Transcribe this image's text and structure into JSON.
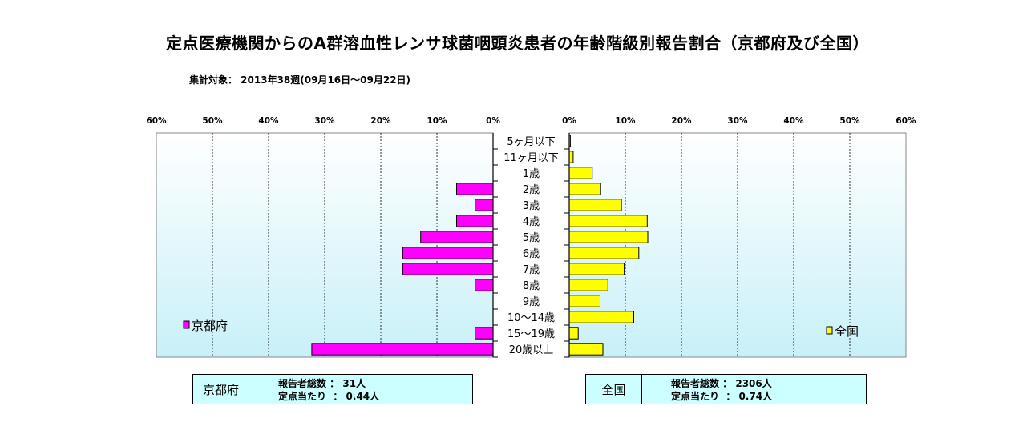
{
  "title": "定点医療機関からのA群溶血性レンサ球菌咽頭炎患者の年齢階級別報告割合（京都府及び全国）",
  "subtitle": "集計対象： 2013年38週(09月16日～09月22日)",
  "colors": {
    "kyoto": "#ff00ff",
    "national": "#ffff00",
    "plot_gradient_top": "#ffffff",
    "plot_gradient_bottom": "#c8f0f8",
    "summary_bg": "#ccffff"
  },
  "chart_data": {
    "type": "bar",
    "orientation": "horizontal",
    "layout": "population-pyramid",
    "categories": [
      "5ヶ月以下",
      "11ヶ月以下",
      "1歳",
      "2歳",
      "3歳",
      "4歳",
      "5歳",
      "6歳",
      "7歳",
      "8歳",
      "9歳",
      "10～14歳",
      "15～19歳",
      "20歳以上"
    ],
    "x_ticks": [
      "0%",
      "10%",
      "20%",
      "30%",
      "40%",
      "50%",
      "60%"
    ],
    "xlim": [
      0,
      60
    ],
    "grid": true,
    "series": [
      {
        "name": "京都府",
        "side": "left",
        "color": "#ff00ff",
        "values": [
          0,
          0,
          0,
          6.5,
          3.2,
          6.5,
          12.9,
          16.1,
          16.1,
          3.2,
          0,
          0,
          3.2,
          32.3
        ]
      },
      {
        "name": "全国",
        "side": "right",
        "color": "#ffff00",
        "values": [
          0.2,
          0.7,
          4.1,
          5.6,
          9.3,
          13.9,
          14.0,
          12.4,
          9.8,
          6.9,
          5.5,
          11.5,
          1.6,
          6.0
        ]
      }
    ]
  },
  "summaries": [
    {
      "name": "京都府",
      "line1": "報告者総数 ： 31人",
      "line2": "定点当たり  ： 0.44人"
    },
    {
      "name": "全国",
      "line1": "報告者総数 ： 2306人",
      "line2": "定点当たり  ： 0.74人"
    }
  ]
}
